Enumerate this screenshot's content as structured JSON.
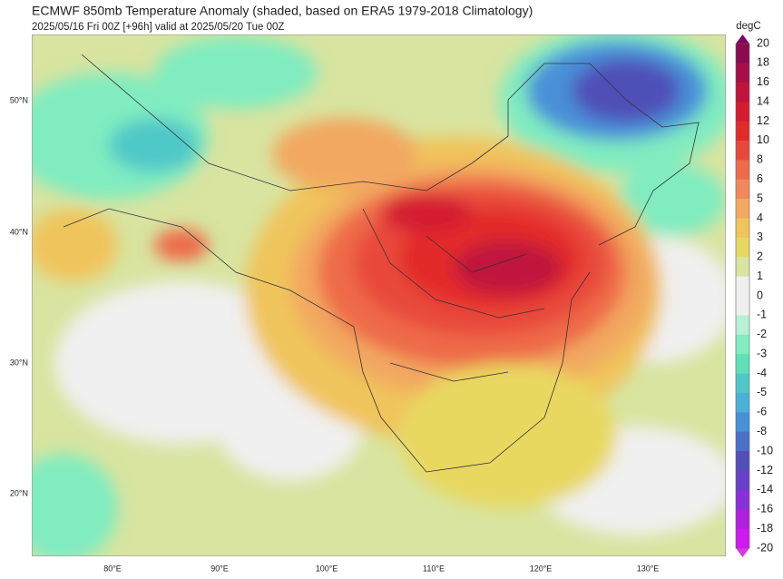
{
  "header": {
    "title": "ECMWF 850mb Temperature Anomaly (shaded, based on ERA5 1979-2018 Climatology)",
    "subtitle": "2025/05/16 Fri 00Z [+96h] valid at 2025/05/20 Tue 00Z"
  },
  "colorbar": {
    "unit": "degC",
    "levels": [
      "20",
      "18",
      "16",
      "14",
      "12",
      "10",
      "8",
      "6",
      "5",
      "4",
      "3",
      "2",
      "1",
      "0",
      "-1",
      "-2",
      "-3",
      "-4",
      "-5",
      "-6",
      "-8",
      "-10",
      "-12",
      "-14",
      "-16",
      "-18",
      "-20"
    ],
    "colors": [
      "#8b0a50",
      "#a5104a",
      "#c0143c",
      "#d41c30",
      "#e32a2a",
      "#e8483a",
      "#ee6a4a",
      "#f0895a",
      "#f2a860",
      "#f0c45c",
      "#e8d860",
      "#d8e4a0",
      "#f0f0f0",
      "#f0f0f0",
      "#b8f0d8",
      "#80ecc0",
      "#5ee0b8",
      "#50c8c8",
      "#4ab0d8",
      "#4890d8",
      "#4a70c8",
      "#5050b8",
      "#6a40c8",
      "#8a30d8",
      "#b020e0",
      "#d018f0"
    ],
    "over_color": "#800060",
    "under_color": "#e030f0"
  },
  "axes": {
    "lat_labels": [
      "50°N",
      "40°N",
      "30°N",
      "20°N"
    ],
    "lon_labels": [
      "80°E",
      "90°E",
      "100°E",
      "110°E",
      "120°E",
      "130°E"
    ]
  }
}
